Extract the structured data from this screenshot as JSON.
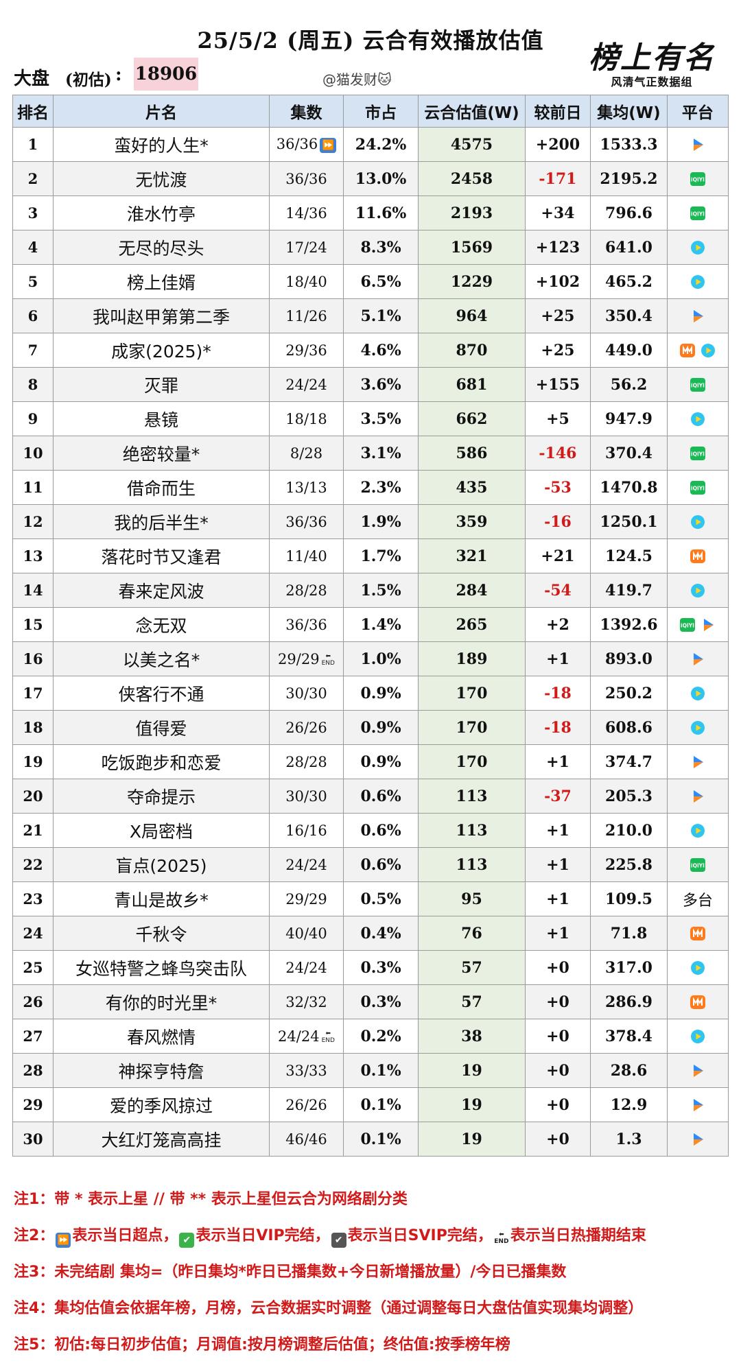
{
  "header": {
    "title": "25/5/2 (周五) 云合有效播放估值",
    "dapan_label": "大盘",
    "dapan_sub": "(初估)",
    "dapan_colon": ":",
    "dapan_value": "18906",
    "author": "@猫发财🐱",
    "logo_text": "榜上有名",
    "logo_sub": "风清气正数据组"
  },
  "table": {
    "columns": [
      "排名",
      "片名",
      "集数",
      "市占",
      "云合估值(W)",
      "较前日",
      "集均(W)",
      "平台"
    ],
    "rows": [
      {
        "rank": "1",
        "name": "蛮好的人生*",
        "episodes": "36/36",
        "mark": "ff",
        "share": "24.2%",
        "yunhe": "4575",
        "change": "+200",
        "avg": "1533.3",
        "platforms": [
          "tencent"
        ]
      },
      {
        "rank": "2",
        "name": "无忧渡",
        "episodes": "36/36",
        "mark": "",
        "share": "13.0%",
        "yunhe": "2458",
        "change": "-171",
        "avg": "2195.2",
        "platforms": [
          "iqiyi"
        ]
      },
      {
        "rank": "3",
        "name": "淮水竹亭",
        "episodes": "14/36",
        "mark": "",
        "share": "11.6%",
        "yunhe": "2193",
        "change": "+34",
        "avg": "796.6",
        "platforms": [
          "iqiyi"
        ]
      },
      {
        "rank": "4",
        "name": "无尽的尽头",
        "episodes": "17/24",
        "mark": "",
        "share": "8.3%",
        "yunhe": "1569",
        "change": "+123",
        "avg": "641.0",
        "platforms": [
          "youku"
        ]
      },
      {
        "rank": "5",
        "name": "榜上佳婿",
        "episodes": "18/40",
        "mark": "",
        "share": "6.5%",
        "yunhe": "1229",
        "change": "+102",
        "avg": "465.2",
        "platforms": [
          "youku"
        ]
      },
      {
        "rank": "6",
        "name": "我叫赵甲第第二季",
        "episodes": "11/26",
        "mark": "",
        "share": "5.1%",
        "yunhe": "964",
        "change": "+25",
        "avg": "350.4",
        "platforms": [
          "tencent"
        ]
      },
      {
        "rank": "7",
        "name": "成家(2025)*",
        "episodes": "29/36",
        "mark": "",
        "share": "4.6%",
        "yunhe": "870",
        "change": "+25",
        "avg": "449.0",
        "platforms": [
          "mango",
          "youku"
        ]
      },
      {
        "rank": "8",
        "name": "灭罪",
        "episodes": "24/24",
        "mark": "",
        "share": "3.6%",
        "yunhe": "681",
        "change": "+155",
        "avg": "56.2",
        "platforms": [
          "iqiyi"
        ]
      },
      {
        "rank": "9",
        "name": "悬镜",
        "episodes": "18/18",
        "mark": "",
        "share": "3.5%",
        "yunhe": "662",
        "change": "+5",
        "avg": "947.9",
        "platforms": [
          "youku"
        ]
      },
      {
        "rank": "10",
        "name": "绝密较量*",
        "episodes": "8/28",
        "mark": "",
        "share": "3.1%",
        "yunhe": "586",
        "change": "-146",
        "avg": "370.4",
        "platforms": [
          "iqiyi"
        ]
      },
      {
        "rank": "11",
        "name": "借命而生",
        "episodes": "13/13",
        "mark": "",
        "share": "2.3%",
        "yunhe": "435",
        "change": "-53",
        "avg": "1470.8",
        "platforms": [
          "iqiyi"
        ]
      },
      {
        "rank": "12",
        "name": "我的后半生*",
        "episodes": "36/36",
        "mark": "",
        "share": "1.9%",
        "yunhe": "359",
        "change": "-16",
        "avg": "1250.1",
        "platforms": [
          "youku"
        ]
      },
      {
        "rank": "13",
        "name": "落花时节又逢君",
        "episodes": "11/40",
        "mark": "",
        "share": "1.7%",
        "yunhe": "321",
        "change": "+21",
        "avg": "124.5",
        "platforms": [
          "mango"
        ]
      },
      {
        "rank": "14",
        "name": "春来定风波",
        "episodes": "28/28",
        "mark": "",
        "share": "1.5%",
        "yunhe": "284",
        "change": "-54",
        "avg": "419.7",
        "platforms": [
          "youku"
        ]
      },
      {
        "rank": "15",
        "name": "念无双",
        "episodes": "36/36",
        "mark": "",
        "share": "1.4%",
        "yunhe": "265",
        "change": "+2",
        "avg": "1392.6",
        "platforms": [
          "iqiyi",
          "tencent"
        ]
      },
      {
        "rank": "16",
        "name": "以美之名*",
        "episodes": "29/29",
        "mark": "end",
        "share": "1.0%",
        "yunhe": "189",
        "change": "+1",
        "avg": "893.0",
        "platforms": [
          "tencent"
        ]
      },
      {
        "rank": "17",
        "name": "侠客行不通",
        "episodes": "30/30",
        "mark": "",
        "share": "0.9%",
        "yunhe": "170",
        "change": "-18",
        "avg": "250.2",
        "platforms": [
          "youku"
        ]
      },
      {
        "rank": "18",
        "name": "值得爱",
        "episodes": "26/26",
        "mark": "",
        "share": "0.9%",
        "yunhe": "170",
        "change": "-18",
        "avg": "608.6",
        "platforms": [
          "youku"
        ]
      },
      {
        "rank": "19",
        "name": "吃饭跑步和恋爱",
        "episodes": "28/28",
        "mark": "",
        "share": "0.9%",
        "yunhe": "170",
        "change": "+1",
        "avg": "374.7",
        "platforms": [
          "tencent"
        ]
      },
      {
        "rank": "20",
        "name": "夺命提示",
        "episodes": "30/30",
        "mark": "",
        "share": "0.6%",
        "yunhe": "113",
        "change": "-37",
        "avg": "205.3",
        "platforms": [
          "tencent"
        ]
      },
      {
        "rank": "21",
        "name": "X局密档",
        "episodes": "16/16",
        "mark": "",
        "share": "0.6%",
        "yunhe": "113",
        "change": "+1",
        "avg": "210.0",
        "platforms": [
          "youku"
        ]
      },
      {
        "rank": "22",
        "name": "盲点(2025)",
        "episodes": "24/24",
        "mark": "",
        "share": "0.6%",
        "yunhe": "113",
        "change": "+1",
        "avg": "225.8",
        "platforms": [
          "iqiyi"
        ]
      },
      {
        "rank": "23",
        "name": "青山是故乡*",
        "episodes": "29/29",
        "mark": "",
        "share": "0.5%",
        "yunhe": "95",
        "change": "+1",
        "avg": "109.5",
        "platforms": [],
        "platform_text": "多台"
      },
      {
        "rank": "24",
        "name": "千秋令",
        "episodes": "40/40",
        "mark": "",
        "share": "0.4%",
        "yunhe": "76",
        "change": "+1",
        "avg": "71.8",
        "platforms": [
          "mango"
        ]
      },
      {
        "rank": "25",
        "name": "女巡特警之蜂鸟突击队",
        "episodes": "24/24",
        "mark": "",
        "share": "0.3%",
        "yunhe": "57",
        "change": "+0",
        "avg": "317.0",
        "platforms": [
          "youku"
        ]
      },
      {
        "rank": "26",
        "name": "有你的时光里*",
        "episodes": "32/32",
        "mark": "",
        "share": "0.3%",
        "yunhe": "57",
        "change": "+0",
        "avg": "286.9",
        "platforms": [
          "mango"
        ]
      },
      {
        "rank": "27",
        "name": "春风燃情",
        "episodes": "24/24",
        "mark": "end",
        "share": "0.2%",
        "yunhe": "38",
        "change": "+0",
        "avg": "378.4",
        "platforms": [
          "youku"
        ]
      },
      {
        "rank": "28",
        "name": "神探亨特詹",
        "episodes": "33/33",
        "mark": "",
        "share": "0.1%",
        "yunhe": "19",
        "change": "+0",
        "avg": "28.6",
        "platforms": [
          "tencent"
        ]
      },
      {
        "rank": "29",
        "name": "爱的季风掠过",
        "episodes": "26/26",
        "mark": "",
        "share": "0.1%",
        "yunhe": "19",
        "change": "+0",
        "avg": "12.9",
        "platforms": [
          "tencent"
        ]
      },
      {
        "rank": "30",
        "name": "大红灯笼高高挂",
        "episodes": "46/46",
        "mark": "",
        "share": "0.1%",
        "yunhe": "19",
        "change": "+0",
        "avg": "1.3",
        "platforms": [
          "tencent"
        ]
      }
    ]
  },
  "mark_labels": {
    "end": "END"
  },
  "notes": {
    "n1": "注1：带 * 表示上星 // 带 ** 表示上星但云合为网络剧分类",
    "n2_prefix": "注2：",
    "n2_a": "表示当日超点，",
    "n2_b": "表示当日VIP完结，",
    "n2_c": "表示当日SVIP完结，",
    "n2_d": "表示当日热播期结束",
    "n3": "注3：未完结剧 集均=（昨日集均*昨日已播集数+今日新增播放量）/今日已播集数",
    "n4": "注4：集均估值会依据年榜，月榜，云合数据实时调整（通过调整每日大盘估值实现集均调整）",
    "n5": "注5：初估:每日初步估值；月调值:按月榜调整后估值；终估值:按季榜年榜"
  },
  "colors": {
    "header_bg": "#d6e3f2",
    "yunhe_col_bg": "#e8f1e1",
    "negative": "#d11a1a",
    "note_red": "#d11a1a",
    "dapan_highlight": "#f8d2d9",
    "tencent_blue": "#2b8bff",
    "tencent_orange": "#ff8a1f",
    "iqiyi_green": "#19b955",
    "youku_cyan": "#2ec5f0",
    "mango_orange": "#ff7a1a"
  }
}
